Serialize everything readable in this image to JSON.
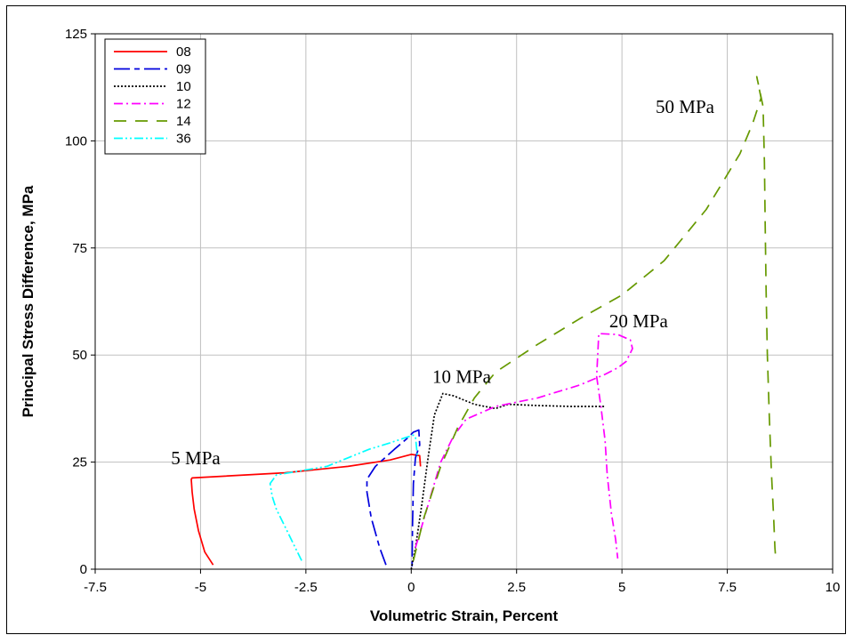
{
  "chart_data": {
    "type": "line",
    "title": "",
    "xlabel": "Volumetric Strain, Percent",
    "ylabel": "Principal Stress Difference, MPa",
    "xlim": [
      -7.5,
      10
    ],
    "ylim": [
      0,
      125
    ],
    "x_ticks": [
      -7.5,
      -5,
      -2.5,
      0,
      2.5,
      5,
      7.5,
      10
    ],
    "x_tick_labels": [
      "-7.5",
      "-5",
      "-2.5",
      "0",
      "2.5",
      "5",
      "7.5",
      "10"
    ],
    "y_ticks": [
      0,
      25,
      50,
      75,
      100,
      125
    ],
    "y_tick_labels": [
      "0",
      "25",
      "50",
      "75",
      "100",
      "125"
    ],
    "grid": true,
    "legend_position": "top-left",
    "series": [
      {
        "name": "08",
        "color": "#ff0000",
        "dash": "solid",
        "points": [
          [
            -4.7,
            1
          ],
          [
            -4.9,
            4
          ],
          [
            -5.05,
            9
          ],
          [
            -5.15,
            14
          ],
          [
            -5.2,
            18
          ],
          [
            -5.22,
            21
          ],
          [
            -5.2,
            21.3
          ],
          [
            -3,
            22.5
          ],
          [
            -1.5,
            24
          ],
          [
            -0.5,
            25.5
          ],
          [
            0,
            26.8
          ],
          [
            0.2,
            26.5
          ],
          [
            0.22,
            24
          ]
        ]
      },
      {
        "name": "09",
        "color": "#0000dd",
        "dash": "long-short",
        "points": [
          [
            -0.6,
            1
          ],
          [
            -0.75,
            5
          ],
          [
            -0.95,
            12
          ],
          [
            -1.05,
            18
          ],
          [
            -1.05,
            21
          ],
          [
            -0.85,
            24
          ],
          [
            -0.4,
            28
          ],
          [
            -0.1,
            30.5
          ],
          [
            0.05,
            32
          ],
          [
            0.18,
            32.5
          ],
          [
            0.2,
            29
          ],
          [
            0.1,
            26
          ],
          [
            0.05,
            20
          ],
          [
            0.03,
            10
          ],
          [
            0.02,
            0
          ]
        ]
      },
      {
        "name": "10",
        "color": "#000000",
        "dash": "dotted",
        "points": [
          [
            0,
            0
          ],
          [
            0.1,
            5
          ],
          [
            0.25,
            15
          ],
          [
            0.4,
            26
          ],
          [
            0.55,
            36
          ],
          [
            0.75,
            41
          ],
          [
            1,
            40.5
          ],
          [
            1.5,
            38.5
          ],
          [
            2,
            37.5
          ],
          [
            2.3,
            38.5
          ],
          [
            3,
            38.2
          ],
          [
            3.8,
            38
          ],
          [
            4.6,
            38
          ]
        ]
      },
      {
        "name": "12",
        "color": "#ff00ff",
        "dash": "dash-dot",
        "points": [
          [
            0.1,
            5
          ],
          [
            0.4,
            15
          ],
          [
            0.7,
            25
          ],
          [
            1.0,
            31
          ],
          [
            1.3,
            35
          ],
          [
            2.0,
            38
          ],
          [
            3.0,
            40
          ],
          [
            4.0,
            43
          ],
          [
            4.6,
            45.5
          ],
          [
            4.9,
            47
          ],
          [
            5.1,
            48.5
          ],
          [
            5.25,
            51.5
          ],
          [
            5.2,
            53.5
          ],
          [
            4.9,
            54.8
          ],
          [
            4.45,
            55
          ],
          [
            4.4,
            45
          ],
          [
            4.5,
            38
          ],
          [
            4.6,
            30
          ],
          [
            4.65,
            22
          ],
          [
            4.75,
            13
          ],
          [
            4.85,
            7
          ],
          [
            4.9,
            2.5
          ]
        ]
      },
      {
        "name": "14",
        "color": "#669900",
        "dash": "long-dash",
        "points": [
          [
            0.05,
            2
          ],
          [
            0.3,
            12
          ],
          [
            0.7,
            24
          ],
          [
            1.1,
            33
          ],
          [
            1.5,
            40
          ],
          [
            2.0,
            46
          ],
          [
            3,
            52.5
          ],
          [
            4,
            58.5
          ],
          [
            5,
            64
          ],
          [
            6,
            72
          ],
          [
            7,
            84
          ],
          [
            7.8,
            97
          ],
          [
            8.1,
            104
          ],
          [
            8.3,
            110
          ],
          [
            8.2,
            115
          ],
          [
            8.35,
            108
          ],
          [
            8.38,
            95
          ],
          [
            8.4,
            80
          ],
          [
            8.42,
            65
          ],
          [
            8.45,
            50
          ],
          [
            8.5,
            35
          ],
          [
            8.55,
            22
          ],
          [
            8.6,
            12
          ],
          [
            8.63,
            5
          ],
          [
            8.65,
            2.5
          ]
        ]
      },
      {
        "name": "36",
        "color": "#00ffff",
        "dash": "dash-dot-dot",
        "points": [
          [
            -2.6,
            2
          ],
          [
            -2.8,
            6
          ],
          [
            -3.0,
            10
          ],
          [
            -3.2,
            14
          ],
          [
            -3.3,
            17
          ],
          [
            -3.35,
            20
          ],
          [
            -3.2,
            22
          ],
          [
            -2.0,
            24
          ],
          [
            -1.5,
            26
          ],
          [
            -1.0,
            28
          ],
          [
            -0.5,
            29.5
          ],
          [
            -0.2,
            30.5
          ],
          [
            0.05,
            31.3
          ],
          [
            0.1,
            31
          ],
          [
            0.15,
            26
          ]
        ]
      }
    ],
    "annotations": [
      {
        "text": "5 MPa",
        "x": -5.7,
        "y": 24.5
      },
      {
        "text": "10 MPa",
        "x": 0.5,
        "y": 43.5
      },
      {
        "text": "20 MPa",
        "x": 4.7,
        "y": 56.5
      },
      {
        "text": "50 MPa",
        "x": 5.8,
        "y": 106.5
      }
    ]
  }
}
